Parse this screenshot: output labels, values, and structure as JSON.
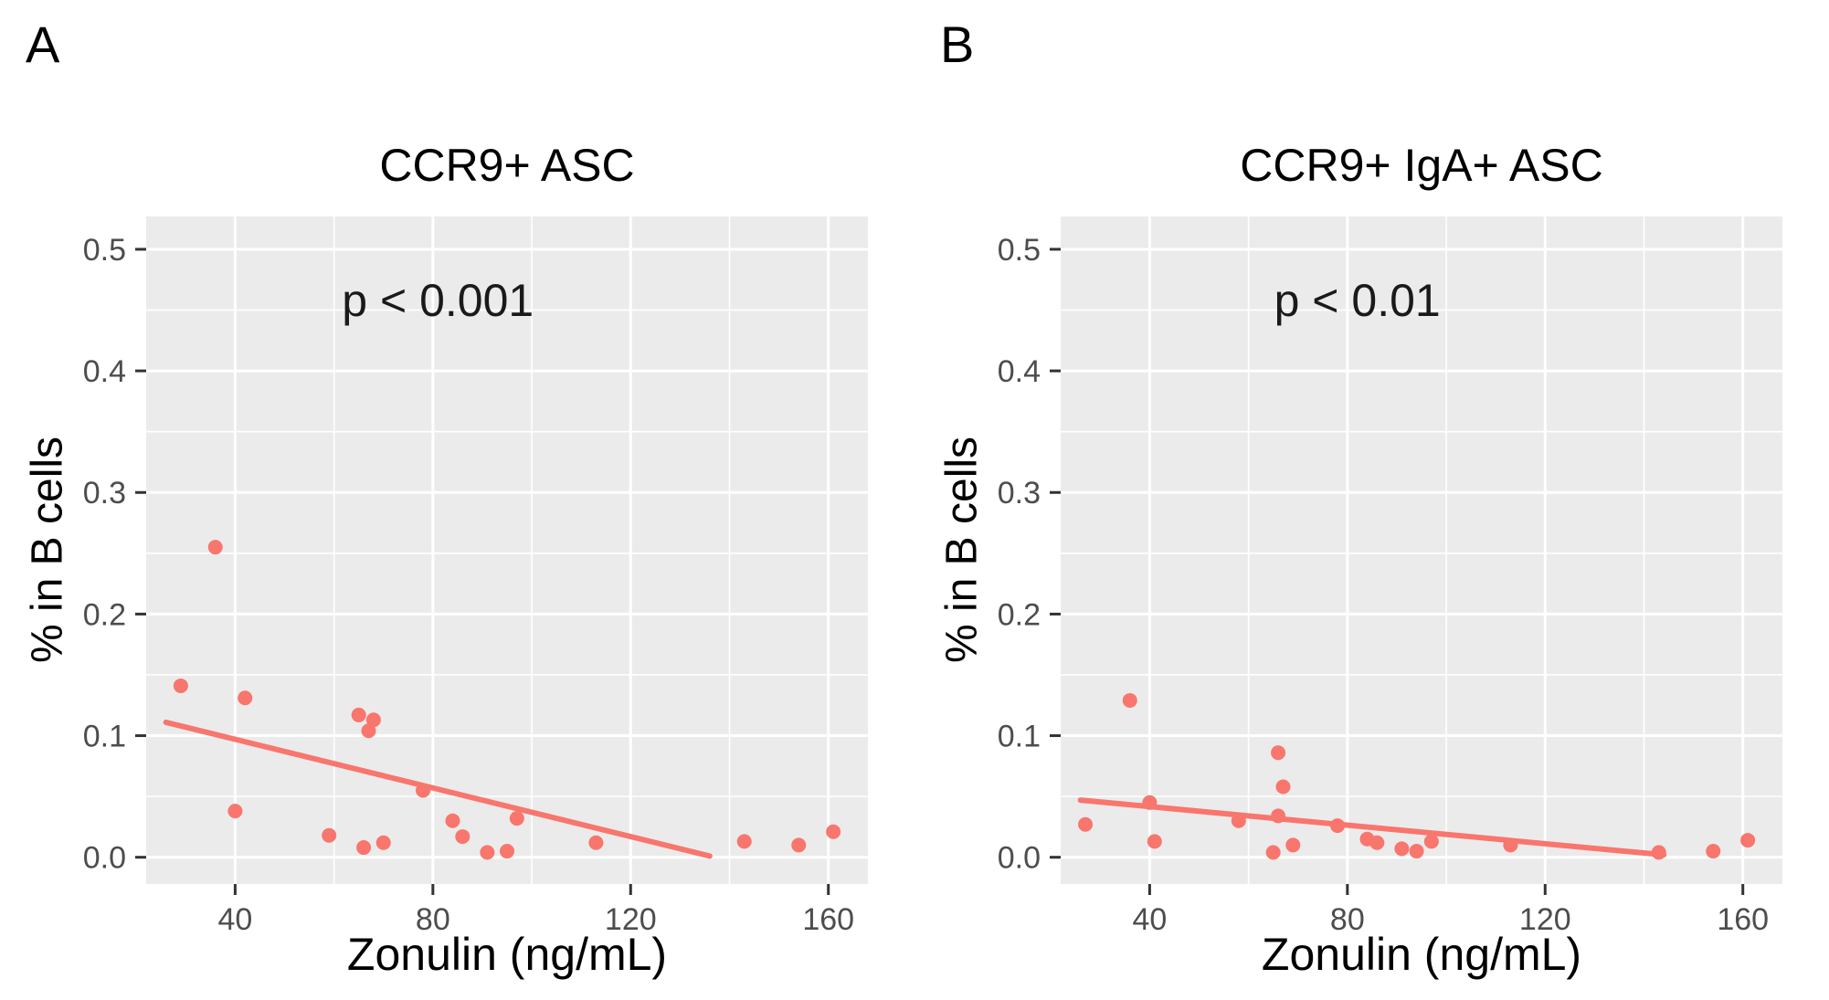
{
  "colors": {
    "panel_bg": "#ebebeb",
    "grid": "#ffffff",
    "accent": "#f8766d",
    "tick_mark": "#333333",
    "tick_text": "#4d4d4d",
    "text": "#1a1a1a"
  },
  "chart_data": [
    {
      "type": "scatter",
      "panel_label": "A",
      "title": "CCR9+ ASC",
      "xlabel": "Zonulin (ng/mL)",
      "ylabel": "% in B cells",
      "annotation": {
        "text": "p < 0.001",
        "x": 81,
        "y": 0.445
      },
      "legend": "none",
      "grid": true,
      "xlim": [
        22,
        168
      ],
      "ylim": [
        -0.022,
        0.527
      ],
      "x_ticks": [
        40,
        80,
        120,
        160
      ],
      "x_minor_ticks": [
        60,
        100,
        140
      ],
      "y_ticks": [
        0.0,
        0.1,
        0.2,
        0.3,
        0.4,
        0.5
      ],
      "y_minor_ticks": [
        0.05,
        0.15,
        0.25,
        0.35,
        0.45
      ],
      "points": [
        [
          29,
          0.141
        ],
        [
          36,
          0.255
        ],
        [
          40,
          0.038
        ],
        [
          42,
          0.131
        ],
        [
          59,
          0.018
        ],
        [
          65,
          0.117
        ],
        [
          66,
          0.008
        ],
        [
          67,
          0.104
        ],
        [
          68,
          0.113
        ],
        [
          70,
          0.012
        ],
        [
          78,
          0.055
        ],
        [
          84,
          0.03
        ],
        [
          86,
          0.017
        ],
        [
          91,
          0.004
        ],
        [
          95,
          0.005
        ],
        [
          97,
          0.032
        ],
        [
          113,
          0.012
        ],
        [
          143,
          0.013
        ],
        [
          154,
          0.01
        ],
        [
          161,
          0.021
        ]
      ],
      "trend_line": {
        "x1": 26,
        "y1": 0.111,
        "x2": 136,
        "y2": 0.001
      }
    },
    {
      "type": "scatter",
      "panel_label": "B",
      "title": "CCR9+ IgA+ ASC",
      "xlabel": "Zonulin (ng/mL)",
      "ylabel": "% in B cells",
      "annotation": {
        "text": "p < 0.01",
        "x": 82,
        "y": 0.445
      },
      "legend": "none",
      "grid": true,
      "xlim": [
        22,
        168
      ],
      "ylim": [
        -0.022,
        0.527
      ],
      "x_ticks": [
        40,
        80,
        120,
        160
      ],
      "x_minor_ticks": [
        60,
        100,
        140
      ],
      "y_ticks": [
        0.0,
        0.1,
        0.2,
        0.3,
        0.4,
        0.5
      ],
      "y_minor_ticks": [
        0.05,
        0.15,
        0.25,
        0.35,
        0.45
      ],
      "points": [
        [
          27,
          0.027
        ],
        [
          36,
          0.129
        ],
        [
          40,
          0.045
        ],
        [
          41,
          0.013
        ],
        [
          58,
          0.03
        ],
        [
          65,
          0.004
        ],
        [
          66,
          0.086
        ],
        [
          66,
          0.034
        ],
        [
          67,
          0.058
        ],
        [
          69,
          0.01
        ],
        [
          78,
          0.026
        ],
        [
          84,
          0.015
        ],
        [
          86,
          0.012
        ],
        [
          91,
          0.007
        ],
        [
          94,
          0.005
        ],
        [
          97,
          0.013
        ],
        [
          113,
          0.01
        ],
        [
          143,
          0.004
        ],
        [
          154,
          0.005
        ],
        [
          161,
          0.014
        ]
      ],
      "trend_line": {
        "x1": 26,
        "y1": 0.047,
        "x2": 144,
        "y2": 0.002
      }
    }
  ]
}
